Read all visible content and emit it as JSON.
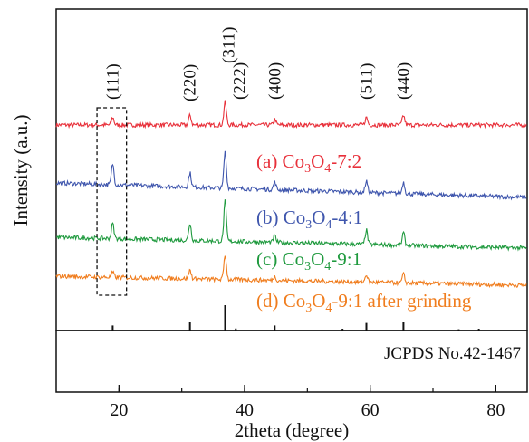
{
  "chart_data": {
    "type": "line",
    "title": "",
    "xlabel": "2theta (degree)",
    "ylabel": "Intensity (a.u.)",
    "xlim": [
      10,
      85
    ],
    "xticks": [
      20,
      40,
      60,
      80
    ],
    "grid": false,
    "peak_labels": [
      {
        "text": "(111)",
        "x": 19.0
      },
      {
        "text": "(220)",
        "x": 31.3
      },
      {
        "text": "(311)",
        "x": 36.9
      },
      {
        "text": "(222)",
        "x": 38.6
      },
      {
        "text": "(400)",
        "x": 44.8
      },
      {
        "text": "(511)",
        "x": 59.4
      },
      {
        "text": "(440)",
        "x": 65.3
      }
    ],
    "series": [
      {
        "name": "(a) Co3O4-7:2",
        "label_prefix": "(a) Co",
        "sub3": "3",
        "label_mid": "O",
        "sub4": "4",
        "label_suffix": "-7:2",
        "color": "#e8303a",
        "baseline": 1.0,
        "slope": 0.0,
        "peaks": [
          {
            "x": 19.0,
            "h": 0.08
          },
          {
            "x": 31.3,
            "h": 0.1
          },
          {
            "x": 36.9,
            "h": 0.24
          },
          {
            "x": 44.8,
            "h": 0.06
          },
          {
            "x": 59.4,
            "h": 0.08
          },
          {
            "x": 65.3,
            "h": 0.1
          }
        ]
      },
      {
        "name": "(b) Co3O4-4:1",
        "label_prefix": "(b) Co",
        "sub3": "3",
        "label_mid": "O",
        "sub4": "4",
        "label_suffix": "-4:1",
        "color": "#3f56ad",
        "baseline": 1.0,
        "slope": 0.0,
        "peaks": [
          {
            "x": 19.0,
            "h": 0.22
          },
          {
            "x": 31.3,
            "h": 0.15
          },
          {
            "x": 36.9,
            "h": 0.38
          },
          {
            "x": 44.8,
            "h": 0.08
          },
          {
            "x": 59.4,
            "h": 0.12
          },
          {
            "x": 65.3,
            "h": 0.12
          }
        ]
      },
      {
        "name": "(c) Co3O4-9:1",
        "label_prefix": "(c) Co",
        "sub3": "3",
        "label_mid": "O",
        "sub4": "4",
        "label_suffix": "-9:1",
        "color": "#1f9a3e",
        "baseline": 1.0,
        "slope": 0.0,
        "peaks": [
          {
            "x": 19.0,
            "h": 0.16
          },
          {
            "x": 31.3,
            "h": 0.18
          },
          {
            "x": 36.9,
            "h": 0.42
          },
          {
            "x": 44.8,
            "h": 0.07
          },
          {
            "x": 59.4,
            "h": 0.15
          },
          {
            "x": 65.3,
            "h": 0.13
          }
        ]
      },
      {
        "name": "(d) Co3O4-9:1 after grinding",
        "label_prefix": "(d) Co",
        "sub3": "3",
        "label_mid": "O",
        "sub4": "4",
        "label_suffix": "-9:1 after grinding",
        "color": "#f07d1e",
        "baseline": 1.0,
        "slope": 0.0,
        "peaks": [
          {
            "x": 19.0,
            "h": 0.05
          },
          {
            "x": 31.3,
            "h": 0.09
          },
          {
            "x": 36.9,
            "h": 0.26
          },
          {
            "x": 44.8,
            "h": 0.04
          },
          {
            "x": 59.4,
            "h": 0.08
          },
          {
            "x": 65.3,
            "h": 0.09
          }
        ]
      }
    ],
    "reference": {
      "label": "JCPDS No.42-1467",
      "lines": [
        {
          "x": 19.0,
          "h": 0.2
        },
        {
          "x": 31.3,
          "h": 0.35
        },
        {
          "x": 36.9,
          "h": 1.0
        },
        {
          "x": 38.6,
          "h": 0.08
        },
        {
          "x": 44.8,
          "h": 0.2
        },
        {
          "x": 55.6,
          "h": 0.07
        },
        {
          "x": 59.4,
          "h": 0.3
        },
        {
          "x": 65.3,
          "h": 0.35
        },
        {
          "x": 74.1,
          "h": 0.05
        },
        {
          "x": 77.3,
          "h": 0.07
        }
      ]
    },
    "highlight_box": {
      "x_range": [
        16.5,
        21.2
      ]
    }
  }
}
